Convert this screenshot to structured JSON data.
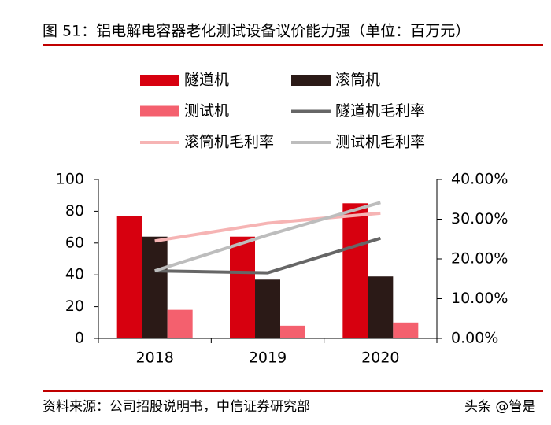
{
  "chart_data": {
    "type": "bar",
    "title": "图 51：铝电解电容器老化测试设备议价能力强（单位：百万元）",
    "source": "资料来源：公司招股说明书，中信证券研究部",
    "watermark": "头条 @管是",
    "categories": [
      "2018",
      "2019",
      "2020"
    ],
    "ylim": [
      0,
      100
    ],
    "yticks": [
      0,
      20,
      40,
      60,
      80,
      100
    ],
    "y2lim": [
      0,
      40
    ],
    "y2ticks": [
      {
        "value": 0,
        "label": "0.00%"
      },
      {
        "value": 10,
        "label": "10.00%"
      },
      {
        "value": 20,
        "label": "20.00%"
      },
      {
        "value": 30,
        "label": "30.00%"
      },
      {
        "value": 40,
        "label": "40.00%"
      }
    ],
    "series": [
      {
        "name": "隧道机",
        "type": "bar",
        "color": "#d7000f",
        "values": [
          77,
          64,
          85
        ]
      },
      {
        "name": "滚筒机",
        "type": "bar",
        "color": "#2b1a17",
        "values": [
          64,
          37,
          39
        ]
      },
      {
        "name": "测试机",
        "type": "bar",
        "color": "#f4606e",
        "values": [
          18,
          8,
          10
        ]
      },
      {
        "name": "隧道机毛利率",
        "type": "line",
        "axis": "y2",
        "color": "#666666",
        "values": [
          17,
          16.5,
          25.2
        ]
      },
      {
        "name": "滚筒机毛利率",
        "type": "line",
        "axis": "y2",
        "color": "#f6b4b4",
        "values": [
          24.5,
          29,
          31.5
        ]
      },
      {
        "name": "测试机毛利率",
        "type": "line",
        "axis": "y2",
        "color": "#bdbdbd",
        "values": [
          17,
          26,
          34.2
        ]
      }
    ]
  }
}
